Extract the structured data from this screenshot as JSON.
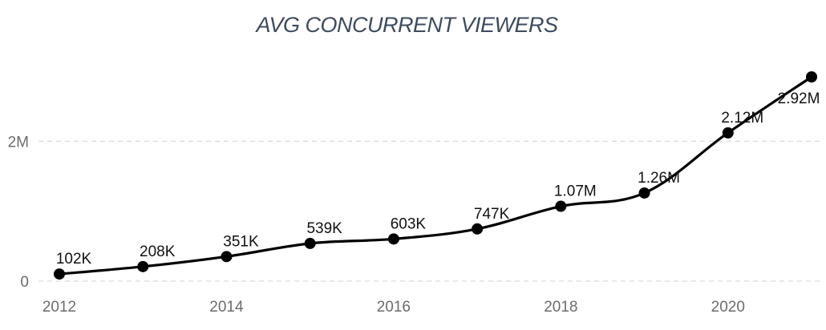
{
  "chart_data": {
    "type": "line",
    "title": "AVG CONCURRENT VIEWERS",
    "xlabel": "",
    "ylabel": "",
    "x": [
      2012,
      2013,
      2014,
      2015,
      2016,
      2017,
      2018,
      2019,
      2020,
      2021
    ],
    "series": [
      {
        "name": "Avg concurrent viewers",
        "values": [
          102000,
          208000,
          351000,
          539000,
          603000,
          747000,
          1070000,
          1260000,
          2120000,
          2920000
        ],
        "labels": [
          "102K",
          "208K",
          "351K",
          "539K",
          "603K",
          "747K",
          "1.07M",
          "1.26M",
          "2.12M",
          "2.92M"
        ]
      }
    ],
    "xlim": [
      2012,
      2021
    ],
    "ylim": [
      0,
      2920000
    ],
    "x_ticks": [
      2012,
      2014,
      2016,
      2018,
      2020
    ],
    "x_tick_labels": [
      "2012",
      "2014",
      "2016",
      "2018",
      "2020"
    ],
    "y_ticks": [
      0,
      2000000
    ],
    "y_tick_labels": [
      "0",
      "2M"
    ],
    "grid": true,
    "colors": {
      "line": "#000000",
      "title": "#3d4b5e",
      "grid": "#d9d9d9",
      "tick": "#6b6b6b"
    }
  }
}
